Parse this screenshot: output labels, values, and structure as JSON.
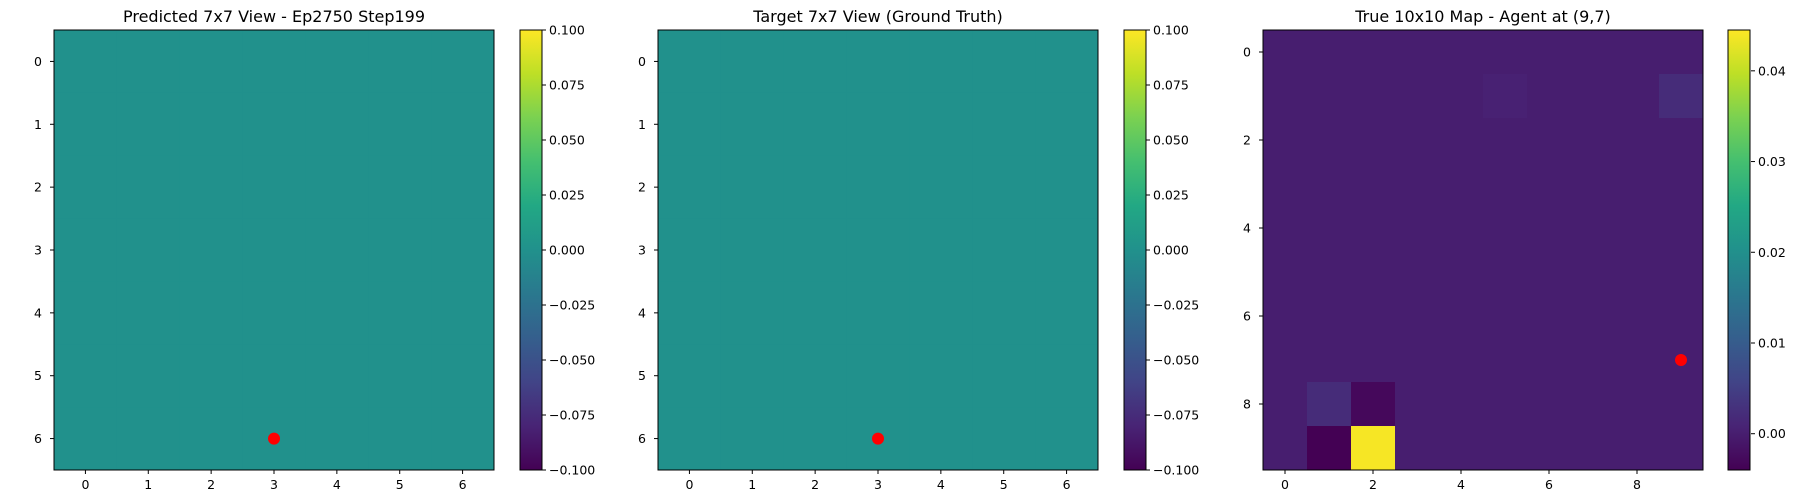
{
  "chart_data": [
    {
      "type": "heatmap",
      "title": "Predicted 7x7 View - Ep2750 Step199",
      "x": [
        0,
        1,
        2,
        3,
        4,
        5,
        6
      ],
      "y": [
        0,
        1,
        2,
        3,
        4,
        5,
        6
      ],
      "xticks": [
        "0",
        "1",
        "2",
        "3",
        "4",
        "5",
        "6"
      ],
      "yticks": [
        "0",
        "1",
        "2",
        "3",
        "4",
        "5",
        "6"
      ],
      "values": [
        [
          0,
          0,
          0,
          0,
          0,
          0,
          0
        ],
        [
          0,
          0,
          0,
          0,
          0,
          0,
          0
        ],
        [
          0,
          0,
          0,
          0,
          0,
          0,
          0
        ],
        [
          0,
          0,
          0,
          0,
          0,
          0,
          0
        ],
        [
          0,
          0,
          0,
          0,
          0,
          0,
          0
        ],
        [
          0,
          0,
          0,
          0,
          0,
          0,
          0
        ],
        [
          0,
          0,
          0,
          0,
          0,
          0,
          0
        ]
      ],
      "colormap": "viridis",
      "vmin": -0.1,
      "vmax": 0.1,
      "colorbar_ticks": [
        0.1,
        0.075,
        0.05,
        0.025,
        0,
        -0.025,
        -0.05,
        -0.075,
        -0.1
      ],
      "colorbar_tick_labels": [
        "0.100",
        "0.075",
        "0.050",
        "0.025",
        "0.000",
        "−0.025",
        "−0.050",
        "−0.075",
        "−0.100"
      ],
      "marker": {
        "x": 3,
        "y": 6,
        "color": "#ff0000"
      }
    },
    {
      "type": "heatmap",
      "title": "Target 7x7 View (Ground Truth)",
      "x": [
        0,
        1,
        2,
        3,
        4,
        5,
        6
      ],
      "y": [
        0,
        1,
        2,
        3,
        4,
        5,
        6
      ],
      "xticks": [
        "0",
        "1",
        "2",
        "3",
        "4",
        "5",
        "6"
      ],
      "yticks": [
        "0",
        "1",
        "2",
        "3",
        "4",
        "5",
        "6"
      ],
      "values": [
        [
          0,
          0,
          0,
          0,
          0,
          0,
          0
        ],
        [
          0,
          0,
          0,
          0,
          0,
          0,
          0
        ],
        [
          0,
          0,
          0,
          0,
          0,
          0,
          0
        ],
        [
          0,
          0,
          0,
          0,
          0,
          0,
          0
        ],
        [
          0,
          0,
          0,
          0,
          0,
          0,
          0
        ],
        [
          0,
          0,
          0,
          0,
          0,
          0,
          0
        ],
        [
          0,
          0,
          0,
          0,
          0,
          0,
          0
        ]
      ],
      "colormap": "viridis",
      "vmin": -0.1,
      "vmax": 0.1,
      "colorbar_ticks": [
        0.1,
        0.075,
        0.05,
        0.025,
        0,
        -0.025,
        -0.05,
        -0.075,
        -0.1
      ],
      "colorbar_tick_labels": [
        "0.100",
        "0.075",
        "0.050",
        "0.025",
        "0.000",
        "−0.025",
        "−0.050",
        "−0.075",
        "−0.100"
      ],
      "marker": {
        "x": 3,
        "y": 6,
        "color": "#ff0000"
      }
    },
    {
      "type": "heatmap",
      "title": "True 10x10 Map - Agent at (9,7)",
      "x": [
        0,
        1,
        2,
        3,
        4,
        5,
        6,
        7,
        8,
        9
      ],
      "y": [
        0,
        1,
        2,
        3,
        4,
        5,
        6,
        7,
        8,
        9
      ],
      "xticks": [
        "0",
        "2",
        "4",
        "6",
        "8"
      ],
      "xtick_values": [
        0,
        2,
        4,
        6,
        8
      ],
      "yticks": [
        "0",
        "2",
        "4",
        "6",
        "8"
      ],
      "ytick_values": [
        0,
        2,
        4,
        6,
        8
      ],
      "values": [
        [
          0,
          0,
          0,
          0,
          0,
          0,
          0,
          0,
          0,
          0
        ],
        [
          0,
          0,
          0,
          0,
          0,
          0.0005,
          0,
          0,
          0,
          0.002
        ],
        [
          0,
          0,
          0,
          0,
          0,
          0,
          0,
          0,
          0,
          0
        ],
        [
          0,
          0,
          0,
          0,
          0,
          0,
          0,
          0,
          0,
          0
        ],
        [
          0,
          0,
          0,
          0,
          0,
          0,
          0,
          0,
          0,
          0
        ],
        [
          0,
          0,
          0,
          0,
          0,
          0,
          0,
          0,
          0,
          0
        ],
        [
          0,
          0,
          0,
          0,
          0,
          0,
          0,
          0,
          0,
          0
        ],
        [
          0,
          0,
          0,
          0,
          0,
          0,
          0,
          0,
          0,
          0
        ],
        [
          0,
          0.002,
          -0.003,
          0,
          0,
          0,
          0,
          0,
          0,
          0
        ],
        [
          0,
          -0.004,
          0.044,
          0,
          0,
          0,
          0,
          0,
          0,
          0
        ]
      ],
      "colormap": "viridis",
      "vmin": -0.004,
      "vmax": 0.0445,
      "colorbar_ticks": [
        0.04,
        0.03,
        0.02,
        0.01,
        0.0
      ],
      "colorbar_tick_labels": [
        "0.04",
        "0.03",
        "0.02",
        "0.01",
        "0.00"
      ],
      "marker": {
        "x": 9,
        "y": 7,
        "color": "#ff0000"
      }
    }
  ]
}
